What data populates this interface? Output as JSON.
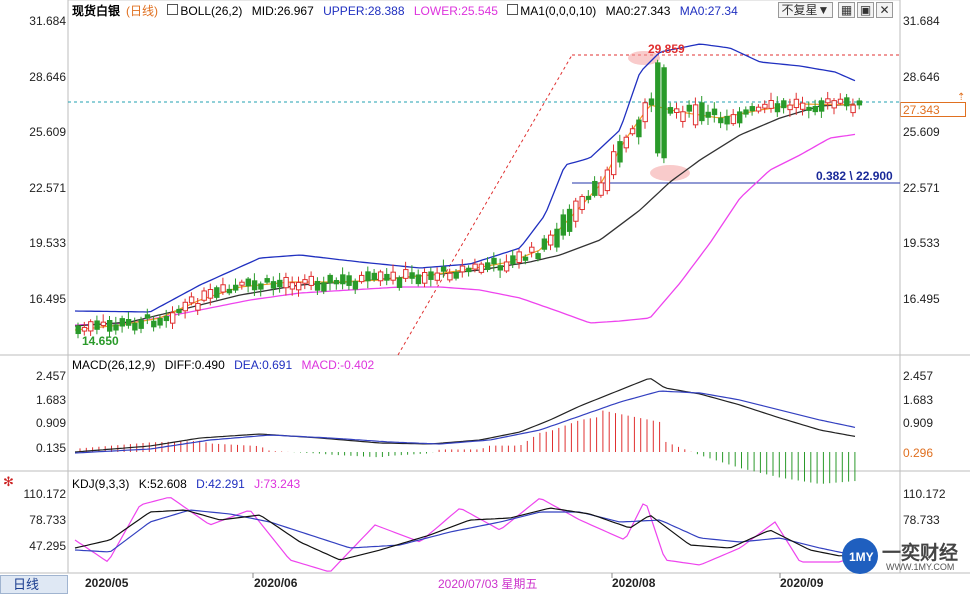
{
  "header": {
    "symbol": "现货白银",
    "timeframe_tag": "(日线)",
    "boll": {
      "label": "BOLL(26,2)",
      "mid": "MID:26.967",
      "upper": "UPPER:28.388",
      "lower": "LOWER:25.545"
    },
    "ma": {
      "label": "MA1(0,0,0,10)",
      "ma0a": "MA0:27.343",
      "ma0b": "MA0:27.34"
    },
    "fq_button": "不复星▼"
  },
  "macd_header": {
    "label": "MACD(26,12,9)",
    "diff": "DIFF:0.490",
    "dea": "DEA:0.691",
    "macd": "MACD:-0.402"
  },
  "kdj_header": {
    "label": "KDJ(9,3,3)",
    "k": "K:52.608",
    "d": "D:42.291",
    "j": "J:73.243"
  },
  "price_axis": [
    "31.684",
    "28.646",
    "25.609",
    "22.571",
    "19.533",
    "16.495"
  ],
  "current_price": "27.343",
  "high_annot": "29.859",
  "low_annot": "14.650",
  "fib_annot": "0.382 \\ 22.900",
  "macd_axis": [
    "2.457",
    "1.683",
    "0.909",
    "0.135"
  ],
  "macd_box": "0.296",
  "kdj_axis": [
    "110.172",
    "78.733",
    "47.295"
  ],
  "date_labels": [
    "2020/05",
    "2020/06",
    "2020/08",
    "2020/09"
  ],
  "crosshair_date": "2020/07/03 星期五",
  "timeframe_tab": "日线",
  "logo": {
    "cn": "一奕财经",
    "url": "WWW.1MY.COM",
    "mark": "1MY"
  },
  "colors": {
    "up": "#e03030",
    "down": "#2a9a2a",
    "upper": "#2030c0",
    "lower": "#ee44ee",
    "mid": "#333333",
    "ma": "#f59a23",
    "dea": "#3340c0",
    "diff": "#222222",
    "k": "#111111",
    "d": "#3340c0",
    "j": "#ee44ee"
  },
  "chart_data": {
    "type": "candlestick",
    "title": "现货白银",
    "price_range": [
      14.0,
      31.684
    ],
    "fib_level": 22.9,
    "x_dates": [
      "2020/05",
      "2020/06",
      "2020/07/03",
      "2020/08",
      "2020/09"
    ],
    "series": [
      {
        "name": "BOLL MID",
        "last": 26.967
      },
      {
        "name": "BOLL UPPER",
        "last": 28.388
      },
      {
        "name": "BOLL LOWER",
        "last": 25.545
      },
      {
        "name": "MA0",
        "last": 27.343
      },
      {
        "name": "MACD DIFF",
        "last": 0.49
      },
      {
        "name": "MACD DEA",
        "last": 0.691
      },
      {
        "name": "MACD",
        "last": -0.402
      },
      {
        "name": "K",
        "last": 52.608
      },
      {
        "name": "D",
        "last": 42.291
      },
      {
        "name": "J",
        "last": 73.243
      }
    ]
  }
}
